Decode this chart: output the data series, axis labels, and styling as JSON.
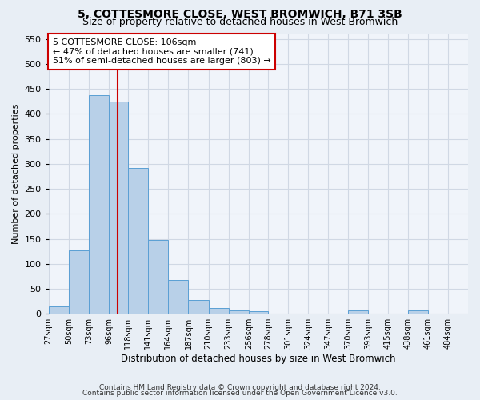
{
  "title": "5, COTTESMORE CLOSE, WEST BROMWICH, B71 3SB",
  "subtitle": "Size of property relative to detached houses in West Bromwich",
  "xlabel": "Distribution of detached houses by size in West Bromwich",
  "ylabel": "Number of detached properties",
  "bin_labels": [
    "27sqm",
    "50sqm",
    "73sqm",
    "96sqm",
    "118sqm",
    "141sqm",
    "164sqm",
    "187sqm",
    "210sqm",
    "233sqm",
    "256sqm",
    "278sqm",
    "301sqm",
    "324sqm",
    "347sqm",
    "370sqm",
    "393sqm",
    "415sqm",
    "438sqm",
    "461sqm",
    "484sqm"
  ],
  "bar_heights": [
    15,
    127,
    438,
    425,
    291,
    147,
    68,
    27,
    11,
    6,
    5,
    0,
    0,
    0,
    0,
    6,
    0,
    0,
    7,
    0,
    0
  ],
  "bar_color": "#b8d0e8",
  "bar_edge_color": "#5a9fd4",
  "red_line_x": 106,
  "bin_edges_sqm": [
    27,
    50,
    73,
    96,
    118,
    141,
    164,
    187,
    210,
    233,
    256,
    278,
    301,
    324,
    347,
    370,
    393,
    415,
    438,
    461,
    484,
    507
  ],
  "annotation_line1": "5 COTTESMORE CLOSE: 106sqm",
  "annotation_line2": "← 47% of detached houses are smaller (741)",
  "annotation_line3": "51% of semi-detached houses are larger (803) →",
  "annotation_box_color": "#ffffff",
  "annotation_box_edge": "#cc0000",
  "vline_color": "#cc0000",
  "ylim": [
    0,
    560
  ],
  "yticks": [
    0,
    50,
    100,
    150,
    200,
    250,
    300,
    350,
    400,
    450,
    500,
    550
  ],
  "footer1": "Contains HM Land Registry data © Crown copyright and database right 2024.",
  "footer2": "Contains public sector information licensed under the Open Government Licence v3.0.",
  "bg_color": "#e8eef5",
  "plot_bg_color": "#f0f4fa",
  "grid_color": "#d0d8e4",
  "title_fontsize": 10,
  "subtitle_fontsize": 9,
  "annotation_fontsize": 8
}
